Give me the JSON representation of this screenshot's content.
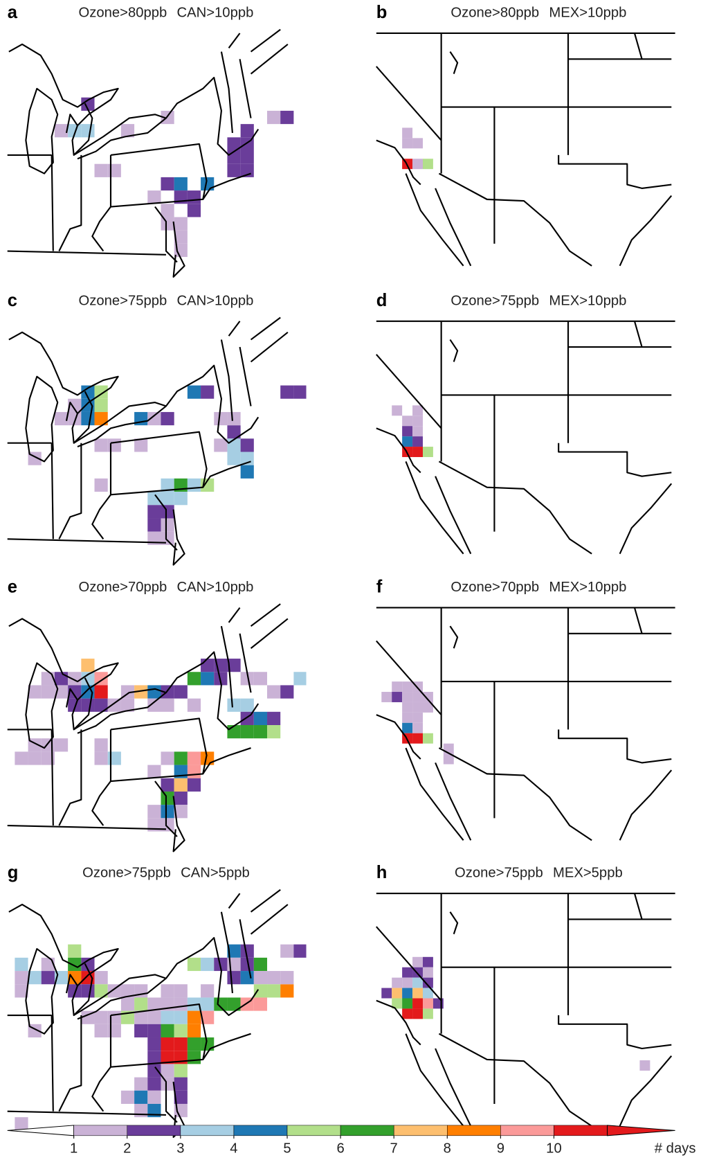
{
  "panels": [
    {
      "letter": "a",
      "title": "Ozone>80ppb CAN>10ppb",
      "cells": [
        [
          -85,
          44,
          2
        ],
        [
          -87,
          42,
          1
        ],
        [
          -86,
          42,
          3
        ],
        [
          -85,
          42,
          3
        ],
        [
          -82,
          42,
          1
        ],
        [
          -79,
          43,
          1
        ],
        [
          -84,
          39,
          1
        ],
        [
          -83,
          39,
          1
        ],
        [
          -79,
          38,
          2
        ],
        [
          -78,
          38,
          4
        ],
        [
          -76,
          38,
          4
        ],
        [
          -80,
          37,
          1
        ],
        [
          -78,
          37,
          2
        ],
        [
          -77,
          37,
          2
        ],
        [
          -79,
          36,
          1
        ],
        [
          -77,
          36,
          2
        ],
        [
          -79,
          35,
          1
        ],
        [
          -78,
          35,
          1
        ],
        [
          -78,
          34,
          1
        ],
        [
          -78,
          33,
          1
        ],
        [
          -73,
          42,
          2
        ],
        [
          -74,
          41,
          2
        ],
        [
          -73,
          41,
          2
        ],
        [
          -74,
          40,
          2
        ],
        [
          -73,
          40,
          2
        ],
        [
          -74,
          39,
          2
        ],
        [
          -73,
          39,
          2
        ],
        [
          -71,
          43,
          1
        ],
        [
          -70,
          43,
          2
        ]
      ]
    },
    {
      "letter": "b",
      "title": "Ozone>80ppb MEX>10ppb",
      "cells": [
        [
          -122,
          35,
          1
        ],
        [
          -122,
          34,
          1
        ],
        [
          -121,
          34,
          1
        ],
        [
          -122,
          32,
          11
        ],
        [
          -121,
          32,
          1
        ],
        [
          -120,
          32,
          5
        ]
      ]
    },
    {
      "letter": "c",
      "title": "Ozone>75ppb CAN>10ppb",
      "cells": [
        [
          -85,
          44,
          4
        ],
        [
          -84,
          44,
          5
        ],
        [
          -85,
          43,
          4
        ],
        [
          -84,
          43,
          5
        ],
        [
          -86,
          43,
          1
        ],
        [
          -87,
          42,
          1
        ],
        [
          -86,
          42,
          1
        ],
        [
          -85,
          42,
          4
        ],
        [
          -84,
          42,
          8
        ],
        [
          -81,
          42,
          4
        ],
        [
          -80,
          42,
          1
        ],
        [
          -79,
          42,
          2
        ],
        [
          -77,
          44,
          4
        ],
        [
          -76,
          44,
          2
        ],
        [
          -70,
          44,
          2
        ],
        [
          -69,
          44,
          2
        ],
        [
          -84,
          40,
          1
        ],
        [
          -83,
          40,
          1
        ],
        [
          -81,
          40,
          1
        ],
        [
          -89,
          39,
          1
        ],
        [
          -84,
          37,
          1
        ],
        [
          -74,
          41,
          2
        ],
        [
          -75,
          42,
          1
        ],
        [
          -74,
          42,
          1
        ],
        [
          -74,
          40,
          3
        ],
        [
          -73,
          40,
          2
        ],
        [
          -75,
          40,
          1
        ],
        [
          -73,
          39,
          3
        ],
        [
          -74,
          39,
          3
        ],
        [
          -73,
          38,
          4
        ],
        [
          -79,
          37,
          3
        ],
        [
          -78,
          37,
          6
        ],
        [
          -77,
          37,
          3
        ],
        [
          -76,
          37,
          5
        ],
        [
          -80,
          36,
          3
        ],
        [
          -79,
          36,
          3
        ],
        [
          -78,
          36,
          3
        ],
        [
          -80,
          35,
          2
        ],
        [
          -79,
          35,
          2
        ],
        [
          -80,
          34,
          2
        ],
        [
          -79,
          34,
          1
        ],
        [
          -80,
          33,
          1
        ],
        [
          -79,
          33,
          1
        ]
      ]
    },
    {
      "letter": "d",
      "title": "Ozone>75ppb MEX>10ppb",
      "cells": [
        [
          -123,
          36,
          1
        ],
        [
          -121,
          36,
          1
        ],
        [
          -122,
          35,
          1
        ],
        [
          -121,
          35,
          1
        ],
        [
          -122,
          34,
          2
        ],
        [
          -121,
          34,
          1
        ],
        [
          -122,
          33,
          4
        ],
        [
          -121,
          33,
          2
        ],
        [
          -122,
          32,
          11
        ],
        [
          -121,
          32,
          11
        ],
        [
          -120,
          32,
          5
        ]
      ]
    },
    {
      "letter": "e",
      "title": "Ozone>70ppb CAN>10ppb",
      "cells": [
        [
          -88,
          44,
          1
        ],
        [
          -85,
          45,
          7
        ],
        [
          -85,
          44,
          3
        ],
        [
          -84,
          44,
          9
        ],
        [
          -87,
          44,
          2
        ],
        [
          -86,
          44,
          1
        ],
        [
          -86,
          43,
          2
        ],
        [
          -85,
          43,
          4
        ],
        [
          -84,
          43,
          11
        ],
        [
          -89,
          43,
          1
        ],
        [
          -88,
          43,
          1
        ],
        [
          -87,
          43,
          1
        ],
        [
          -86,
          42,
          2
        ],
        [
          -85,
          42,
          2
        ],
        [
          -84,
          42,
          2
        ],
        [
          -83,
          42,
          1
        ],
        [
          -82,
          43,
          1
        ],
        [
          -81,
          43,
          7
        ],
        [
          -80,
          43,
          4
        ],
        [
          -79,
          43,
          2
        ],
        [
          -78,
          43,
          2
        ],
        [
          -77,
          44,
          6
        ],
        [
          -76,
          44,
          4
        ],
        [
          -75,
          44,
          2
        ],
        [
          -75,
          45,
          2
        ],
        [
          -74,
          45,
          2
        ],
        [
          -76,
          45,
          2
        ],
        [
          -73,
          44,
          1
        ],
        [
          -72,
          44,
          1
        ],
        [
          -71,
          43,
          1
        ],
        [
          -70,
          43,
          2
        ],
        [
          -69,
          44,
          3
        ],
        [
          -68,
          44,
          4
        ],
        [
          -82,
          42,
          1
        ],
        [
          -80,
          42,
          1
        ],
        [
          -79,
          42,
          1
        ],
        [
          -77,
          42,
          1
        ],
        [
          -74,
          42,
          3
        ],
        [
          -73,
          42,
          3
        ],
        [
          -73,
          41,
          2
        ],
        [
          -72,
          41,
          4
        ],
        [
          -71,
          41,
          2
        ],
        [
          -74,
          40,
          6
        ],
        [
          -73,
          40,
          6
        ],
        [
          -72,
          40,
          6
        ],
        [
          -71,
          40,
          5
        ],
        [
          -89,
          39,
          1
        ],
        [
          -88,
          39,
          1
        ],
        [
          -87,
          39,
          1
        ],
        [
          -84,
          39,
          1
        ],
        [
          -84,
          38,
          1
        ],
        [
          -83,
          38,
          3
        ],
        [
          -79,
          38,
          1
        ],
        [
          -78,
          38,
          6
        ],
        [
          -77,
          38,
          9
        ],
        [
          -76,
          38,
          8
        ],
        [
          -77,
          37,
          9
        ],
        [
          -78,
          37,
          4
        ],
        [
          -79,
          36,
          2
        ],
        [
          -78,
          36,
          7
        ],
        [
          -77,
          36,
          2
        ],
        [
          -79,
          35,
          6
        ],
        [
          -78,
          35,
          2
        ],
        [
          -79,
          34,
          4
        ],
        [
          -78,
          34,
          1
        ],
        [
          -80,
          34,
          1
        ],
        [
          -79,
          33,
          1
        ],
        [
          -80,
          33,
          1
        ],
        [
          -80,
          37,
          1
        ],
        [
          -90,
          38,
          1
        ],
        [
          -89,
          38,
          1
        ],
        [
          -88,
          38,
          1
        ]
      ]
    },
    {
      "letter": "f",
      "title": "Ozone>70ppb MEX>10ppb",
      "cells": [
        [
          -123,
          37,
          1
        ],
        [
          -122,
          37,
          1
        ],
        [
          -121,
          37,
          1
        ],
        [
          -124,
          36,
          1
        ],
        [
          -123,
          36,
          2
        ],
        [
          -122,
          36,
          1
        ],
        [
          -121,
          36,
          1
        ],
        [
          -120,
          36,
          1
        ],
        [
          -122,
          35,
          1
        ],
        [
          -121,
          35,
          1
        ],
        [
          -120,
          35,
          1
        ],
        [
          -122,
          34,
          1
        ],
        [
          -121,
          34,
          1
        ],
        [
          -122,
          33,
          4
        ],
        [
          -121,
          33,
          1
        ],
        [
          -122,
          32,
          11
        ],
        [
          -121,
          32,
          11
        ],
        [
          -120,
          32,
          5
        ],
        [
          -118,
          31,
          1
        ],
        [
          -118,
          30,
          1
        ]
      ]
    },
    {
      "letter": "g",
      "title": "Ozone>75ppb CAN>5ppb",
      "cells": [
        [
          -90,
          43,
          1
        ],
        [
          -89,
          43,
          3
        ],
        [
          -88,
          43,
          2
        ],
        [
          -87,
          43,
          3
        ],
        [
          -86,
          43,
          8
        ],
        [
          -85,
          43,
          11
        ],
        [
          -84,
          43,
          1
        ],
        [
          -86,
          45,
          5
        ],
        [
          -85,
          44,
          2
        ],
        [
          -86,
          44,
          6
        ],
        [
          -90,
          42,
          1
        ],
        [
          -86,
          42,
          2
        ],
        [
          -85,
          42,
          2
        ],
        [
          -84,
          42,
          5
        ],
        [
          -83,
          42,
          1
        ],
        [
          -82,
          42,
          1
        ],
        [
          -81,
          42,
          1
        ],
        [
          -79,
          42,
          1
        ],
        [
          -78,
          42,
          1
        ],
        [
          -76,
          42,
          1
        ],
        [
          -90,
          44,
          3
        ],
        [
          -88,
          44,
          1
        ],
        [
          -77,
          44,
          5
        ],
        [
          -76,
          44,
          3
        ],
        [
          -74,
          45,
          4
        ],
        [
          -73,
          45,
          2
        ],
        [
          -75,
          44,
          2
        ],
        [
          -74,
          44,
          1
        ],
        [
          -73,
          44,
          2
        ],
        [
          -72,
          44,
          6
        ],
        [
          -70,
          45,
          1
        ],
        [
          -69,
          45,
          2
        ],
        [
          -68,
          45,
          4
        ],
        [
          -67,
          45,
          6
        ],
        [
          -74,
          43,
          2
        ],
        [
          -73,
          43,
          4
        ],
        [
          -72,
          43,
          1
        ],
        [
          -71,
          43,
          1
        ],
        [
          -72,
          42,
          5
        ],
        [
          -71,
          42,
          5
        ],
        [
          -70,
          42,
          8
        ],
        [
          -70,
          43,
          1
        ],
        [
          -82,
          41,
          1
        ],
        [
          -81,
          41,
          5
        ],
        [
          -80,
          41,
          1
        ],
        [
          -79,
          41,
          1
        ],
        [
          -78,
          41,
          1
        ],
        [
          -77,
          41,
          3
        ],
        [
          -76,
          41,
          3
        ],
        [
          -75,
          41,
          6
        ],
        [
          -74,
          41,
          6
        ],
        [
          -73,
          41,
          9
        ],
        [
          -72,
          41,
          9
        ],
        [
          -85,
          40,
          1
        ],
        [
          -84,
          40,
          1
        ],
        [
          -83,
          40,
          1
        ],
        [
          -82,
          40,
          5
        ],
        [
          -81,
          40,
          1
        ],
        [
          -80,
          40,
          1
        ],
        [
          -79,
          40,
          3
        ],
        [
          -78,
          40,
          3
        ],
        [
          -77,
          40,
          8
        ],
        [
          -76,
          40,
          9
        ],
        [
          -89,
          39,
          1
        ],
        [
          -84,
          39,
          1
        ],
        [
          -83,
          39,
          1
        ],
        [
          -81,
          39,
          2
        ],
        [
          -80,
          39,
          2
        ],
        [
          -79,
          39,
          6
        ],
        [
          -78,
          39,
          5
        ],
        [
          -77,
          39,
          8
        ],
        [
          -80,
          38,
          2
        ],
        [
          -79,
          38,
          11
        ],
        [
          -78,
          38,
          11
        ],
        [
          -77,
          38,
          6
        ],
        [
          -76,
          38,
          6
        ],
        [
          -80,
          37,
          2
        ],
        [
          -79,
          37,
          10
        ],
        [
          -78,
          37,
          11
        ],
        [
          -77,
          37,
          6
        ],
        [
          -80,
          36,
          2
        ],
        [
          -79,
          36,
          1
        ],
        [
          -78,
          36,
          5
        ],
        [
          -81,
          35,
          1
        ],
        [
          -80,
          35,
          2
        ],
        [
          -79,
          35,
          1
        ],
        [
          -78,
          35,
          2
        ],
        [
          -82,
          34,
          1
        ],
        [
          -81,
          34,
          4
        ],
        [
          -80,
          34,
          1
        ],
        [
          -78,
          34,
          2
        ],
        [
          -81,
          33,
          1
        ],
        [
          -80,
          33,
          4
        ],
        [
          -78,
          33,
          1
        ],
        [
          -90,
          32,
          1
        ]
      ]
    },
    {
      "letter": "h",
      "title": "Ozone>75ppb MEX>5ppb",
      "cells": [
        [
          -121,
          38,
          1
        ],
        [
          -120,
          38,
          2
        ],
        [
          -122,
          37,
          2
        ],
        [
          -121,
          37,
          2
        ],
        [
          -120,
          37,
          1
        ],
        [
          -123,
          36,
          1
        ],
        [
          -122,
          36,
          1
        ],
        [
          -121,
          36,
          3
        ],
        [
          -120,
          36,
          2
        ],
        [
          -124,
          35,
          2
        ],
        [
          -123,
          35,
          7
        ],
        [
          -122,
          35,
          4
        ],
        [
          -121,
          35,
          7
        ],
        [
          -120,
          35,
          3
        ],
        [
          -123,
          34,
          5
        ],
        [
          -122,
          34,
          6
        ],
        [
          -121,
          34,
          10
        ],
        [
          -120,
          34,
          9
        ],
        [
          -119,
          34,
          2
        ],
        [
          -122,
          33,
          11
        ],
        [
          -121,
          33,
          11
        ],
        [
          -120,
          33,
          5
        ],
        [
          -99,
          28,
          1
        ]
      ]
    }
  ],
  "colorbar": {
    "ticks": [
      1,
      2,
      3,
      4,
      5,
      6,
      7,
      8,
      9,
      10
    ],
    "label": "# days",
    "colors": [
      "#cab2d6",
      "#6a3d9a",
      "#a6cee3",
      "#1f78b4",
      "#b2df8a",
      "#33a02c",
      "#fdbf6f",
      "#ff7f00",
      "#fb9a99",
      "#e31a1c"
    ]
  }
}
